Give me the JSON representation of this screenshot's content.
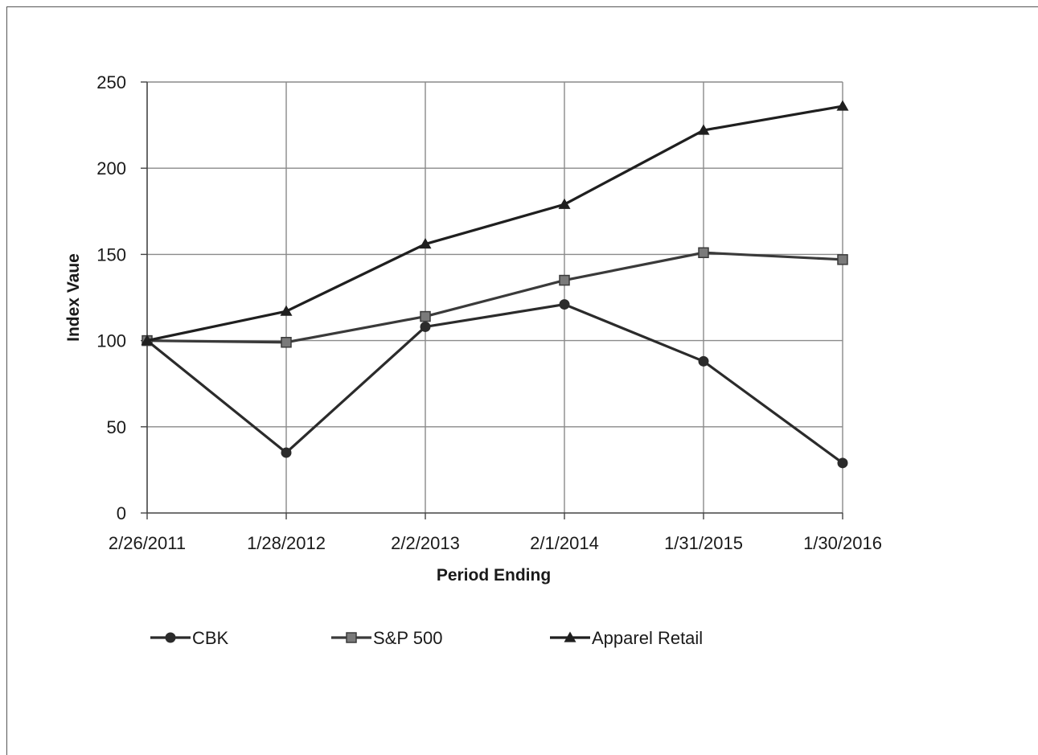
{
  "chart_data": {
    "type": "line",
    "title": "",
    "xlabel": "Period Ending",
    "ylabel": "Index Vaue",
    "categories": [
      "2/26/2011",
      "1/28/2012",
      "2/2/2013",
      "2/1/2014",
      "1/31/2015",
      "1/30/2016"
    ],
    "ylim": [
      0,
      250
    ],
    "yticks": [
      0,
      50,
      100,
      150,
      200,
      250
    ],
    "grid": true,
    "legend_position": "bottom",
    "series": [
      {
        "name": "CBK",
        "marker": "circle",
        "color": "#2b2b2b",
        "values": [
          100,
          35,
          108,
          121,
          88,
          29
        ]
      },
      {
        "name": "S&P 500",
        "marker": "square",
        "color": "#3a3a3a",
        "values": [
          100,
          99,
          114,
          135,
          151,
          147
        ]
      },
      {
        "name": "Apparel Retail",
        "marker": "triangle",
        "color": "#1f1f1f",
        "values": [
          100,
          117,
          156,
          179,
          222,
          236
        ]
      }
    ]
  }
}
